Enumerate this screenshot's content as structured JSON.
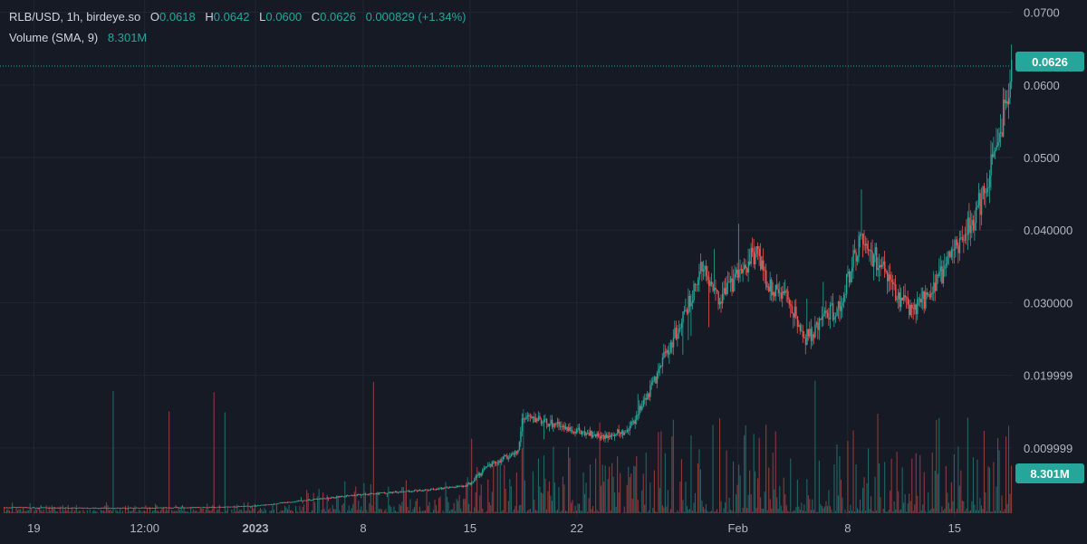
{
  "legend": {
    "symbol": "RLB/USD, 1h, birdeye.so",
    "o_label": "O",
    "o_value": "0.0618",
    "h_label": "H",
    "h_value": "0.0642",
    "l_label": "L",
    "l_value": "0.0600",
    "c_label": "C",
    "c_value": "0.0626",
    "change": "0.000829 (+1.34%)",
    "volume_label": "Volume (SMA, 9)",
    "volume_value": "8.301M"
  },
  "last_price_tag": "0.0626",
  "volume_tag": "8.301M",
  "colors": {
    "background": "#161a25",
    "up": "#26a69a",
    "down": "#ef5350",
    "grid": "#232632",
    "text": "#b2b5be"
  },
  "chart_data": {
    "type": "candlestick",
    "symbol": "RLB/USD",
    "interval": "1h",
    "source": "birdeye.so",
    "last": {
      "open": 0.0618,
      "high": 0.0642,
      "low": 0.06,
      "close": 0.0626,
      "change": 0.000829,
      "change_pct": 1.34
    },
    "y_ticks": [
      {
        "value": 0.07,
        "label": "0.0700"
      },
      {
        "value": 0.06,
        "label": "0.0600"
      },
      {
        "value": 0.05,
        "label": "0.0500"
      },
      {
        "value": 0.04,
        "label": "0.040000"
      },
      {
        "value": 0.03,
        "label": "0.030000"
      },
      {
        "value": 0.02,
        "label": "0.019999"
      },
      {
        "value": 0.01,
        "label": "0.009999"
      }
    ],
    "ylim": [
      0.0005,
      0.0717
    ],
    "x_ticks": [
      {
        "label": "19",
        "bold": false,
        "t": 0.03
      },
      {
        "label": "12:00",
        "bold": false,
        "t": 0.14
      },
      {
        "label": "2023",
        "bold": true,
        "t": 0.25
      },
      {
        "label": "8",
        "bold": false,
        "t": 0.357
      },
      {
        "label": "15",
        "bold": false,
        "t": 0.463
      },
      {
        "label": "22",
        "bold": false,
        "t": 0.569
      },
      {
        "label": "Feb",
        "bold": false,
        "t": 0.729
      },
      {
        "label": "8",
        "bold": false,
        "t": 0.838
      },
      {
        "label": "15",
        "bold": false,
        "t": 0.944
      }
    ],
    "price_path": [
      [
        0.0,
        0.0018
      ],
      [
        0.1,
        0.0017
      ],
      [
        0.2,
        0.0018
      ],
      [
        0.25,
        0.002
      ],
      [
        0.3,
        0.0028
      ],
      [
        0.35,
        0.0035
      ],
      [
        0.4,
        0.004
      ],
      [
        0.44,
        0.0045
      ],
      [
        0.46,
        0.0048
      ],
      [
        0.48,
        0.0075
      ],
      [
        0.51,
        0.0095
      ],
      [
        0.515,
        0.0145
      ],
      [
        0.53,
        0.0138
      ],
      [
        0.56,
        0.0128
      ],
      [
        0.59,
        0.0115
      ],
      [
        0.62,
        0.0125
      ],
      [
        0.64,
        0.0175
      ],
      [
        0.66,
        0.024
      ],
      [
        0.68,
        0.03
      ],
      [
        0.692,
        0.036
      ],
      [
        0.71,
        0.03
      ],
      [
        0.73,
        0.034
      ],
      [
        0.745,
        0.037
      ],
      [
        0.76,
        0.032
      ],
      [
        0.78,
        0.03
      ],
      [
        0.795,
        0.025
      ],
      [
        0.81,
        0.027
      ],
      [
        0.83,
        0.03
      ],
      [
        0.85,
        0.039
      ],
      [
        0.87,
        0.035
      ],
      [
        0.885,
        0.031
      ],
      [
        0.9,
        0.029
      ],
      [
        0.92,
        0.031
      ],
      [
        0.935,
        0.035
      ],
      [
        0.95,
        0.039
      ],
      [
        0.965,
        0.042
      ],
      [
        0.98,
        0.049
      ],
      [
        0.99,
        0.055
      ],
      [
        1.0,
        0.0626
      ]
    ],
    "volume": {
      "sma_period": 9,
      "last_sma": "8.301M"
    }
  }
}
